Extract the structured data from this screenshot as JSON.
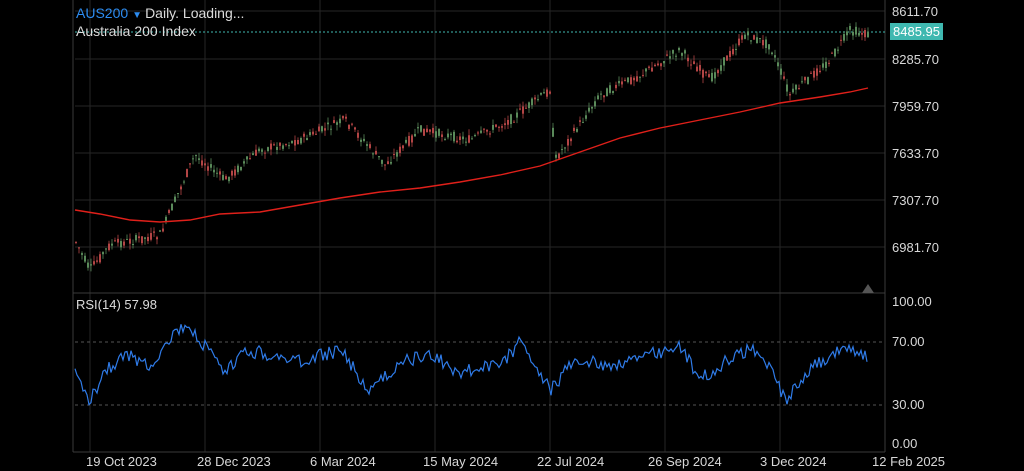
{
  "header": {
    "symbol": "AUS200",
    "dropdown_icon": "triangle-down-icon",
    "status": "Daily. Loading...",
    "instrument_name": "Australia 200 Index"
  },
  "price_axis": {
    "ticks": [
      "8611.70",
      "8285.70",
      "7959.70",
      "7633.70",
      "7307.70",
      "6981.70"
    ],
    "current_price": "8485.95",
    "current_price_color": "#3fb8b0"
  },
  "rsi": {
    "title": "RSI(14) 57.98",
    "ticks": [
      "100.00",
      "70.00",
      "30.00",
      "0.00"
    ],
    "line_color": "#2f7be8"
  },
  "time_axis": {
    "ticks": [
      "19 Oct 2023",
      "28 Dec 2023",
      "6 Mar 2024",
      "15 May 2024",
      "22 Jul 2024",
      "26 Sep 2024",
      "3 Dec 2024",
      "12 Feb 2025"
    ]
  },
  "colors": {
    "moving_average": "#e0201a",
    "candle_up": "#5a8a5a",
    "candle_down": "#b34545",
    "grid": "#2a2a2a"
  }
}
